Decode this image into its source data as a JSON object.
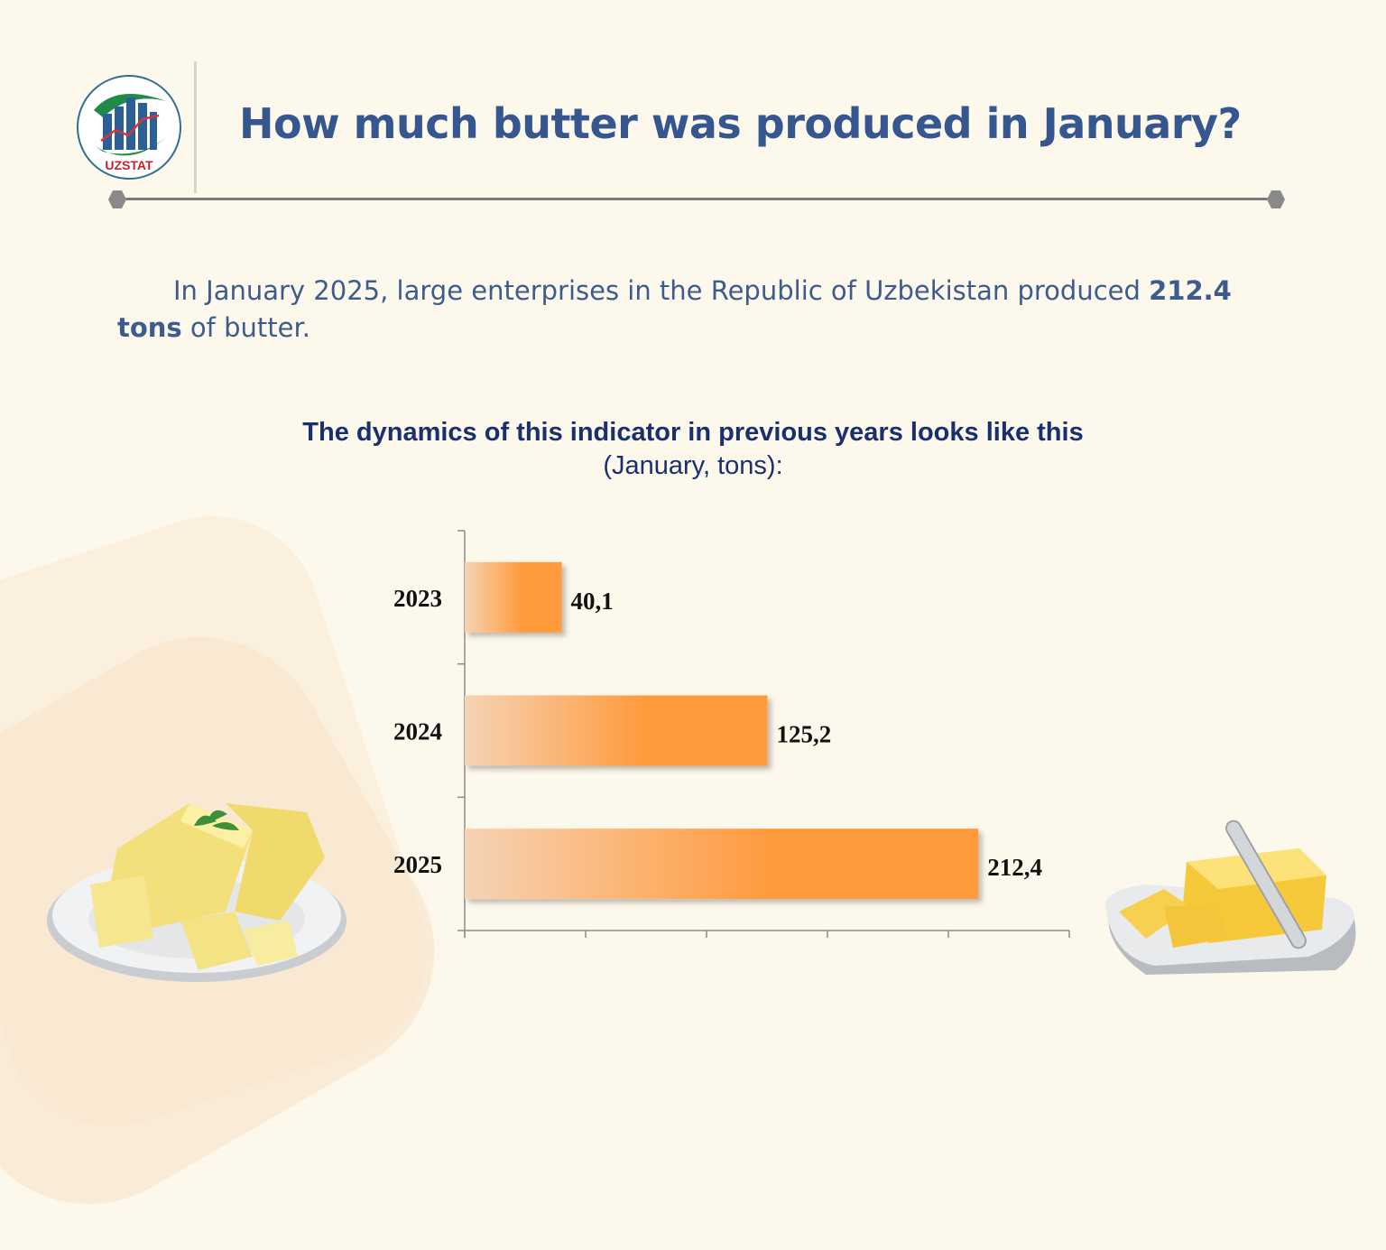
{
  "header": {
    "logo_text": "UZSTAT",
    "title": "How much butter was produced in January?"
  },
  "intro": {
    "text_before": "In January 2025, large enterprises in the Republic of Uzbekistan produced",
    "highlight": "212.4 tons",
    "text_after": "of butter."
  },
  "colors": {
    "title": "#36568f",
    "bar": "#ff9a3c",
    "chart_title": "#1a2f6e"
  },
  "chart_data": {
    "type": "bar",
    "orientation": "horizontal",
    "title": "The dynamics of this indicator in previous years looks like this",
    "subtitle": "(January, tons):",
    "categories": [
      "2023",
      "2024",
      "2025"
    ],
    "values": [
      40.1,
      125.2,
      212.4
    ],
    "value_labels": [
      "40,1",
      "125,2",
      "212,4"
    ],
    "xlim": [
      0,
      250
    ],
    "grid": false,
    "legend": "none"
  }
}
